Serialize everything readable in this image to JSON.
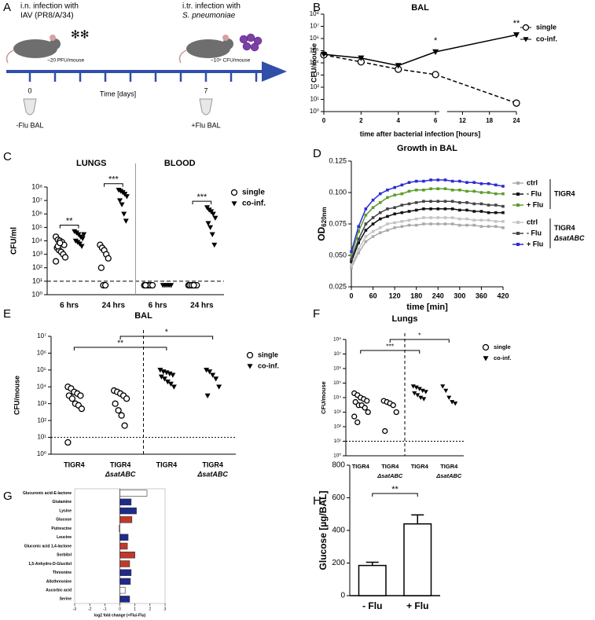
{
  "timeline": {
    "panel": "A",
    "infection1": "i.n. infection with",
    "virus": "IAV (PR8/A/34)",
    "dose1": "~20 PFU/mouse",
    "infection2": "i.tr. infection with",
    "bacterium": "S. pneumoniae",
    "dose2": "~10⁵ CFU/mouse",
    "day0": "0",
    "day7": "7",
    "axis_label": "Time [days]",
    "bal0": "-Flu BAL",
    "bal7": "+Flu BAL"
  },
  "chart_data": [
    {
      "type": "line",
      "panel": "B",
      "title": "BAL",
      "xlabel": "time after bacterial infection [hours]",
      "ylabel": "CFU/mouse",
      "log_y": true,
      "x": [
        0,
        2,
        4,
        6,
        24
      ],
      "xlim": [
        0,
        24
      ],
      "xticks": [
        0,
        2,
        4,
        6,
        12,
        18,
        24
      ],
      "ylim": [
        1,
        100000000.0
      ],
      "yticks": [
        {
          "value": 1,
          "label": "10⁰"
        },
        {
          "value": 10,
          "label": "10¹"
        },
        {
          "value": 100,
          "label": "10²"
        },
        {
          "value": 1000,
          "label": "10³"
        },
        {
          "value": 10000,
          "label": "10⁴"
        },
        {
          "value": 100000,
          "label": "10⁵"
        },
        {
          "value": 1000000,
          "label": "10⁶"
        },
        {
          "value": 10000000,
          "label": "10⁷"
        },
        {
          "value": 100000000,
          "label": "10⁸"
        }
      ],
      "series": [
        {
          "name": "single",
          "color": "#000000",
          "marker": "circle",
          "dashed": true,
          "values": [
            45000,
            12000,
            3000,
            1100,
            5
          ]
        },
        {
          "name": "co-inf.",
          "color": "#000000",
          "marker": "triangle",
          "dashed": false,
          "values": [
            50000,
            25000,
            6000,
            80000,
            2000000
          ]
        }
      ],
      "annotations": [
        {
          "text": "*",
          "x": 6
        },
        {
          "text": "**",
          "x": 24
        }
      ]
    },
    {
      "type": "strip",
      "panel": "C",
      "ylabel": "CFU/ml",
      "log_y": true,
      "detection_limit": 10,
      "group_labels": [
        "LUNGS",
        "BLOOD"
      ],
      "categories": [
        "6 hrs",
        "24 hrs",
        "6 hrs",
        "24 hrs"
      ],
      "ylim": [
        1,
        100000000.0
      ],
      "yticks": [
        {
          "value": 1,
          "label": "10⁰"
        },
        {
          "value": 10,
          "label": "10¹"
        },
        {
          "value": 100,
          "label": "10²"
        },
        {
          "value": 1000,
          "label": "10³"
        },
        {
          "value": 10000,
          "label": "10⁴"
        },
        {
          "value": 100000,
          "label": "10⁵"
        },
        {
          "value": 1000000,
          "label": "10⁶"
        },
        {
          "value": 10000000,
          "label": "10⁷"
        },
        {
          "value": 100000000,
          "label": "10⁸"
        }
      ],
      "series": [
        {
          "name": "single",
          "marker": "circle",
          "values": [
            [
              20000,
              12000,
              10000,
              8000,
              5000,
              3000,
              2000,
              1500,
              1000,
              600,
              300,
              4000,
              7000
            ],
            [
              5000,
              3000,
              2000,
              1000,
              500,
              100,
              5,
              5
            ],
            [
              5,
              5,
              5,
              5,
              5,
              5
            ],
            [
              5,
              5,
              5,
              5,
              5,
              5,
              5,
              5
            ]
          ]
        },
        {
          "name": "co-inf.",
          "marker": "triangle",
          "values": [
            [
              50000,
              40000,
              30000,
              20000,
              15000,
              10000,
              8000,
              6000,
              4000,
              30000
            ],
            [
              60000000,
              50000000,
              40000000,
              30000000,
              20000000,
              10000000,
              5000000,
              1000000,
              300000
            ],
            [
              5,
              5,
              5,
              5,
              5
            ],
            [
              3000000,
              2000000,
              1500000,
              1000000,
              500000,
              200000,
              100000,
              30000,
              5000
            ]
          ]
        }
      ],
      "annotations": [
        "**",
        "***",
        "***"
      ]
    },
    {
      "type": "line",
      "panel": "D",
      "title": "Growth in BAL",
      "xlabel": "time [min]",
      "ylabel": "OD",
      "ylabel_sub": "620nm",
      "log_y": false,
      "x": [
        0,
        20,
        40,
        60,
        80,
        100,
        120,
        140,
        160,
        180,
        200,
        220,
        240,
        260,
        280,
        300,
        320,
        340,
        360,
        380,
        400,
        420
      ],
      "xlim": [
        0,
        420
      ],
      "xticks": [
        0,
        60,
        120,
        180,
        240,
        300,
        360,
        420
      ],
      "ylim": [
        0.025,
        0.125
      ],
      "yticks": [
        0.025,
        {
          "value": 0.05,
          "label": "0.050"
        },
        0.075,
        {
          "value": 0.1,
          "label": "0.100"
        },
        0.125
      ],
      "legend_groups": [
        [
          "TIGR4"
        ],
        [
          "TIGR4",
          "ΔsatABC"
        ]
      ],
      "series": [
        {
          "name": "ctrl",
          "color": "#aaaaaa",
          "values": [
            0.04,
            0.052,
            0.061,
            0.065,
            0.068,
            0.07,
            0.072,
            0.073,
            0.074,
            0.074,
            0.075,
            0.075,
            0.075,
            0.075,
            0.075,
            0.074,
            0.074,
            0.074,
            0.073,
            0.073,
            0.073,
            0.072
          ]
        },
        {
          "name": "- Flu",
          "color": "#111111",
          "values": [
            0.045,
            0.06,
            0.07,
            0.075,
            0.079,
            0.081,
            0.083,
            0.084,
            0.085,
            0.086,
            0.087,
            0.087,
            0.087,
            0.087,
            0.087,
            0.086,
            0.086,
            0.085,
            0.085,
            0.084,
            0.084,
            0.084
          ]
        },
        {
          "name": "+ Flu",
          "color": "#5a9e2a",
          "values": [
            0.05,
            0.069,
            0.082,
            0.088,
            0.092,
            0.096,
            0.098,
            0.099,
            0.101,
            0.102,
            0.102,
            0.103,
            0.103,
            0.103,
            0.102,
            0.102,
            0.101,
            0.101,
            0.1,
            0.1,
            0.099,
            0.099
          ]
        },
        {
          "name": "ctrl",
          "color": "#c4c4c4",
          "values": [
            0.042,
            0.055,
            0.065,
            0.069,
            0.072,
            0.075,
            0.076,
            0.077,
            0.078,
            0.079,
            0.08,
            0.08,
            0.08,
            0.08,
            0.08,
            0.079,
            0.079,
            0.078,
            0.078,
            0.078,
            0.077,
            0.077
          ]
        },
        {
          "name": "- Flu",
          "color": "#444444",
          "values": [
            0.047,
            0.063,
            0.075,
            0.08,
            0.084,
            0.087,
            0.088,
            0.09,
            0.091,
            0.092,
            0.093,
            0.093,
            0.093,
            0.093,
            0.093,
            0.092,
            0.092,
            0.091,
            0.091,
            0.09,
            0.09,
            0.089
          ]
        },
        {
          "name": "+ Flu",
          "color": "#2b2bd6",
          "values": [
            0.053,
            0.073,
            0.087,
            0.094,
            0.099,
            0.102,
            0.104,
            0.106,
            0.108,
            0.109,
            0.109,
            0.11,
            0.11,
            0.11,
            0.109,
            0.109,
            0.108,
            0.108,
            0.107,
            0.107,
            0.106,
            0.105
          ]
        }
      ]
    },
    {
      "type": "strip",
      "panel": "E",
      "title": "BAL",
      "ylabel": "CFU/mouse",
      "log_y": true,
      "detection_limit": 10,
      "categories": [
        "TIGR4",
        "TIGR4",
        "TIGR4",
        "TIGR4"
      ],
      "subcategories": [
        null,
        "ΔsatABC",
        null,
        "ΔsatABC"
      ],
      "ylim": [
        1,
        10000000.0
      ],
      "yticks": [
        {
          "value": 1,
          "label": "10⁰"
        },
        {
          "value": 10,
          "label": "10¹"
        },
        {
          "value": 100,
          "label": "10²"
        },
        {
          "value": 1000,
          "label": "10³"
        },
        {
          "value": 10000,
          "label": "10⁴"
        },
        {
          "value": 100000,
          "label": "10⁵"
        },
        {
          "value": 1000000,
          "label": "10⁶"
        },
        {
          "value": 10000000,
          "label": "10⁷"
        }
      ],
      "series": [
        {
          "name": "single",
          "marker": "circle",
          "values": [
            [
              10000,
              8000,
              5000,
              4000,
              3000,
              3000,
              2000,
              1000,
              800,
              500,
              5
            ],
            [
              6000,
              5000,
              4000,
              3000,
              2000,
              1000,
              400,
              200,
              50
            ],
            null,
            null
          ]
        },
        {
          "name": "co-inf.",
          "marker": "triangle",
          "values": [
            null,
            null,
            [
              100000,
              80000,
              70000,
              60000,
              50000,
              40000,
              30000,
              20000,
              15000,
              10000
            ],
            [
              100000,
              80000,
              50000,
              30000,
              10000,
              3000
            ]
          ]
        }
      ],
      "annotations": [
        "**",
        "*"
      ]
    },
    {
      "type": "strip",
      "panel": "F",
      "title": "Lungs",
      "ylabel": "CFU/mouse",
      "log_y": true,
      "detection_limit": 10,
      "categories": [
        "TIGR4",
        "TIGR4",
        "TIGR4",
        "TIGR4"
      ],
      "subcategories": [
        null,
        "ΔsatABC",
        null,
        "ΔsatABC"
      ],
      "ylim": [
        1,
        100000000.0
      ],
      "yticks": [
        {
          "value": 1,
          "label": "10⁰"
        },
        {
          "value": 10,
          "label": "10¹"
        },
        {
          "value": 100,
          "label": "10²"
        },
        {
          "value": 1000,
          "label": "10³"
        },
        {
          "value": 10000,
          "label": "10⁴"
        },
        {
          "value": 100000,
          "label": "10⁵"
        },
        {
          "value": 1000000,
          "label": "10⁶"
        },
        {
          "value": 10000000,
          "label": "10⁷"
        },
        {
          "value": 100000000,
          "label": "10⁸"
        }
      ],
      "series": [
        {
          "name": "single",
          "marker": "circle",
          "values": [
            [
              20000,
              15000,
              10000,
              8000,
              6000,
              5000,
              3000,
              3000,
              2000,
              1000,
              500,
              200
            ],
            [
              6000,
              5000,
              4000,
              3000,
              1000,
              50
            ],
            null,
            null
          ]
        },
        {
          "name": "co-inf.",
          "marker": "triangle",
          "values": [
            null,
            null,
            [
              60000,
              50000,
              40000,
              30000,
              25000,
              20000,
              15000,
              10000,
              8000
            ],
            [
              60000,
              30000,
              10000,
              5000,
              4000
            ]
          ]
        }
      ],
      "annotations": [
        "***",
        "*"
      ]
    },
    {
      "type": "hbar",
      "panel": "G",
      "xlabel": "log2 fold change (+Flu/-Flu)",
      "categories": [
        "Glucuronic acid-E-lactone",
        "Glutamine",
        "Lysine",
        "Glucose",
        "Putrescine",
        "Leucine",
        "Gluconic acid 1,4-lactone",
        "Sorbitol",
        "1,5-Anhydro-D-Glucitol",
        "Threonine",
        "Allothreonine",
        "Ascorbic acid",
        "Serine"
      ],
      "values": [
        1.8,
        0.75,
        1.1,
        0.8,
        -0.05,
        0.55,
        0.5,
        1.0,
        0.65,
        0.75,
        0.7,
        0.35,
        0.65
      ],
      "colors": [
        "#ffffff",
        "#1f2a8c",
        "#1f2a8c",
        "#c0392b",
        "#ffffff",
        "#1f2a8c",
        "#c0392b",
        "#c0392b",
        "#c0392b",
        "#1f2a8c",
        "#1f2a8c",
        "#ffffff",
        "#1f2a8c"
      ],
      "xlim": [
        -3,
        3
      ],
      "xticks": [
        -3,
        -2,
        -1,
        0,
        1,
        2,
        3
      ]
    },
    {
      "type": "bar",
      "panel": "H",
      "ylabel": "Glucose [µg/BAL]",
      "categories": [
        "- Flu",
        "+ Flu"
      ],
      "values": [
        185,
        440
      ],
      "errors": [
        20,
        55
      ],
      "color": "#ffffff",
      "ylim": [
        0,
        800
      ],
      "yticks": [
        0,
        200,
        400,
        600,
        800
      ],
      "annotations": [
        "**"
      ]
    }
  ]
}
